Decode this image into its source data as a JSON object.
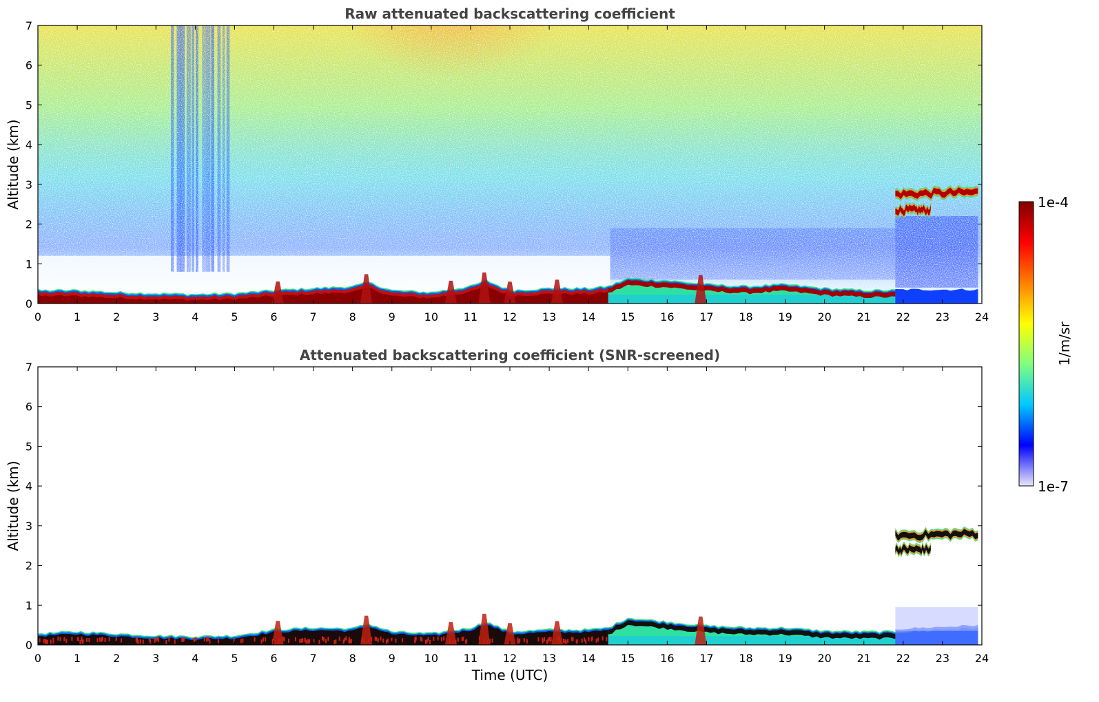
{
  "chart_data": [
    {
      "type": "heatmap",
      "title": "Raw attenuated backscattering coefficient",
      "xlabel": "",
      "ylabel": "Altitude (km)",
      "xlim": [
        0,
        24
      ],
      "ylim": [
        0,
        7
      ],
      "x_ticks": [
        "0",
        "1",
        "2",
        "3",
        "4",
        "5",
        "6",
        "7",
        "8",
        "9",
        "10",
        "11",
        "12",
        "13",
        "14",
        "15",
        "16",
        "17",
        "18",
        "19",
        "20",
        "21",
        "22",
        "23",
        "24"
      ],
      "y_ticks": [
        "0",
        "1",
        "2",
        "3",
        "4",
        "5",
        "6",
        "7"
      ],
      "boundary_layer_top_km": [
        [
          0,
          0.3
        ],
        [
          1,
          0.3
        ],
        [
          2,
          0.25
        ],
        [
          3,
          0.22
        ],
        [
          4,
          0.2
        ],
        [
          5,
          0.22
        ],
        [
          6,
          0.3
        ],
        [
          7,
          0.35
        ],
        [
          8,
          0.4
        ],
        [
          8.4,
          0.5
        ],
        [
          9,
          0.3
        ],
        [
          10,
          0.25
        ],
        [
          11,
          0.4
        ],
        [
          11.4,
          0.55
        ],
        [
          12,
          0.3
        ],
        [
          13,
          0.35
        ],
        [
          14,
          0.35
        ],
        [
          14.5,
          0.4
        ],
        [
          15,
          0.6
        ],
        [
          16,
          0.55
        ],
        [
          17,
          0.45
        ],
        [
          18,
          0.4
        ],
        [
          19,
          0.45
        ],
        [
          20,
          0.35
        ],
        [
          21,
          0.3
        ],
        [
          21.8,
          0.3
        ],
        [
          24,
          0.3
        ]
      ],
      "cloud_layers": [
        {
          "x_start": 21.8,
          "x_end": 23.9,
          "altitude_km": 2.75
        },
        {
          "x_start": 21.8,
          "x_end": 22.7,
          "altitude_km": 2.35
        }
      ]
    },
    {
      "type": "heatmap",
      "title": "Attenuated backscattering coefficient (SNR-screened)",
      "xlabel": "Time (UTC)",
      "ylabel": "Altitude (km)",
      "xlim": [
        0,
        24
      ],
      "ylim": [
        0,
        7
      ],
      "x_ticks": [
        "0",
        "1",
        "2",
        "3",
        "4",
        "5",
        "6",
        "7",
        "8",
        "9",
        "10",
        "11",
        "12",
        "13",
        "14",
        "15",
        "16",
        "17",
        "18",
        "19",
        "20",
        "21",
        "22",
        "23",
        "24"
      ],
      "y_ticks": [
        "0",
        "1",
        "2",
        "3",
        "4",
        "5",
        "6",
        "7"
      ],
      "boundary_layer_top_km": [
        [
          0,
          0.25
        ],
        [
          1,
          0.3
        ],
        [
          2,
          0.25
        ],
        [
          3,
          0.2
        ],
        [
          4,
          0.18
        ],
        [
          5,
          0.2
        ],
        [
          6,
          0.35
        ],
        [
          7,
          0.4
        ],
        [
          8,
          0.38
        ],
        [
          8.4,
          0.5
        ],
        [
          9,
          0.3
        ],
        [
          10,
          0.25
        ],
        [
          11,
          0.4
        ],
        [
          11.4,
          0.55
        ],
        [
          12,
          0.3
        ],
        [
          13,
          0.35
        ],
        [
          14,
          0.35
        ],
        [
          14.5,
          0.4
        ],
        [
          15,
          0.65
        ],
        [
          16,
          0.55
        ],
        [
          17,
          0.45
        ],
        [
          18,
          0.4
        ],
        [
          19,
          0.4
        ],
        [
          20,
          0.32
        ],
        [
          21,
          0.3
        ],
        [
          21.8,
          0.3
        ],
        [
          24,
          0.4
        ]
      ],
      "cloud_layers": [
        {
          "x_start": 21.8,
          "x_end": 23.9,
          "altitude_km": 2.75
        },
        {
          "x_start": 21.8,
          "x_end": 22.7,
          "altitude_km": 2.4
        }
      ]
    }
  ],
  "colorbar": {
    "label": "1/m/sr",
    "max_label": "1e-4",
    "min_label": "1e-7",
    "scale": "log",
    "range": [
      1e-07,
      0.0001
    ],
    "colors": [
      "#e8e8f8",
      "#0000ff",
      "#00c8ff",
      "#7fff7f",
      "#ffff00",
      "#ff8000",
      "#ff0000",
      "#800000"
    ]
  }
}
